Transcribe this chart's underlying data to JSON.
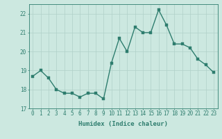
{
  "x": [
    0,
    1,
    2,
    3,
    4,
    5,
    6,
    7,
    8,
    9,
    10,
    11,
    12,
    13,
    14,
    15,
    16,
    17,
    18,
    19,
    20,
    21,
    22,
    23
  ],
  "y": [
    18.7,
    19.0,
    18.6,
    18.0,
    17.8,
    17.8,
    17.6,
    17.8,
    17.8,
    17.5,
    19.4,
    20.7,
    20.0,
    21.3,
    21.0,
    21.0,
    22.2,
    21.4,
    20.4,
    20.4,
    20.2,
    19.6,
    19.3,
    18.9
  ],
  "line_color": "#2e7d6e",
  "marker_color": "#2e7d6e",
  "bg_color": "#cce8e0",
  "grid_color": "#b0d0c8",
  "xlabel": "Humidex (Indice chaleur)",
  "ylim": [
    17,
    22.5
  ],
  "xlim": [
    -0.5,
    23.5
  ],
  "yticks": [
    17,
    18,
    19,
    20,
    21,
    22
  ],
  "xticks": [
    0,
    1,
    2,
    3,
    4,
    5,
    6,
    7,
    8,
    9,
    10,
    11,
    12,
    13,
    14,
    15,
    16,
    17,
    18,
    19,
    20,
    21,
    22,
    23
  ],
  "tick_color": "#2e7d6e",
  "axes_color": "#2e7d6e",
  "label_fontsize": 6.5,
  "tick_fontsize": 5.5,
  "line_width": 1.0,
  "marker_size": 2.5
}
